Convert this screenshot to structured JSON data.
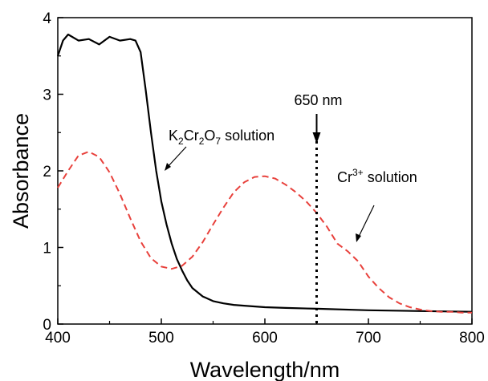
{
  "chart_data": {
    "type": "line",
    "xlabel": "Wavelength/nm",
    "ylabel": "Absorbance",
    "xlim": [
      400,
      800
    ],
    "ylim": [
      0,
      4
    ],
    "x_ticks": [
      "400",
      "500",
      "600",
      "700",
      "800"
    ],
    "y_ticks": [
      "0",
      "1",
      "2",
      "3",
      "4"
    ],
    "grid": false,
    "series": [
      {
        "name": "K2Cr2O7 solution",
        "color": "#000000",
        "style": "solid",
        "x": [
          400,
          405,
          410,
          420,
          430,
          440,
          450,
          460,
          470,
          475,
          480,
          485,
          490,
          495,
          500,
          505,
          510,
          515,
          520,
          525,
          530,
          540,
          550,
          560,
          570,
          580,
          600,
          620,
          650,
          700,
          750,
          800
        ],
        "y": [
          3.5,
          3.7,
          3.78,
          3.7,
          3.72,
          3.65,
          3.75,
          3.7,
          3.72,
          3.7,
          3.55,
          3.05,
          2.5,
          2.0,
          1.6,
          1.3,
          1.05,
          0.85,
          0.7,
          0.57,
          0.47,
          0.36,
          0.3,
          0.27,
          0.25,
          0.24,
          0.22,
          0.21,
          0.2,
          0.18,
          0.17,
          0.16
        ]
      },
      {
        "name": "Cr3+ solution",
        "color": "#e8413c",
        "style": "dashed",
        "x": [
          400,
          410,
          420,
          430,
          440,
          450,
          460,
          470,
          480,
          490,
          500,
          510,
          520,
          530,
          540,
          550,
          560,
          570,
          580,
          590,
          600,
          610,
          620,
          630,
          640,
          650,
          660,
          670,
          680,
          690,
          700,
          710,
          720,
          730,
          740,
          750,
          760,
          770,
          780,
          790,
          800
        ],
        "y": [
          1.78,
          2.0,
          2.2,
          2.25,
          2.18,
          1.98,
          1.7,
          1.38,
          1.08,
          0.86,
          0.75,
          0.72,
          0.76,
          0.88,
          1.07,
          1.3,
          1.52,
          1.72,
          1.85,
          1.92,
          1.93,
          1.9,
          1.82,
          1.72,
          1.6,
          1.45,
          1.27,
          1.05,
          0.95,
          0.82,
          0.62,
          0.47,
          0.35,
          0.27,
          0.22,
          0.19,
          0.17,
          0.16,
          0.16,
          0.15,
          0.15
        ]
      }
    ],
    "vertical_line": {
      "x": 650,
      "style": "dotted",
      "label": "650 nm"
    },
    "annotations": {
      "k2_label": {
        "K": "K",
        "s1": "2",
        "Cr": "Cr",
        "s2": "2",
        "O": "O",
        "s3": "7",
        "rest": " solution"
      },
      "cr_label": {
        "Cr": "Cr",
        "sup": "3+",
        "rest": " solution"
      }
    }
  }
}
